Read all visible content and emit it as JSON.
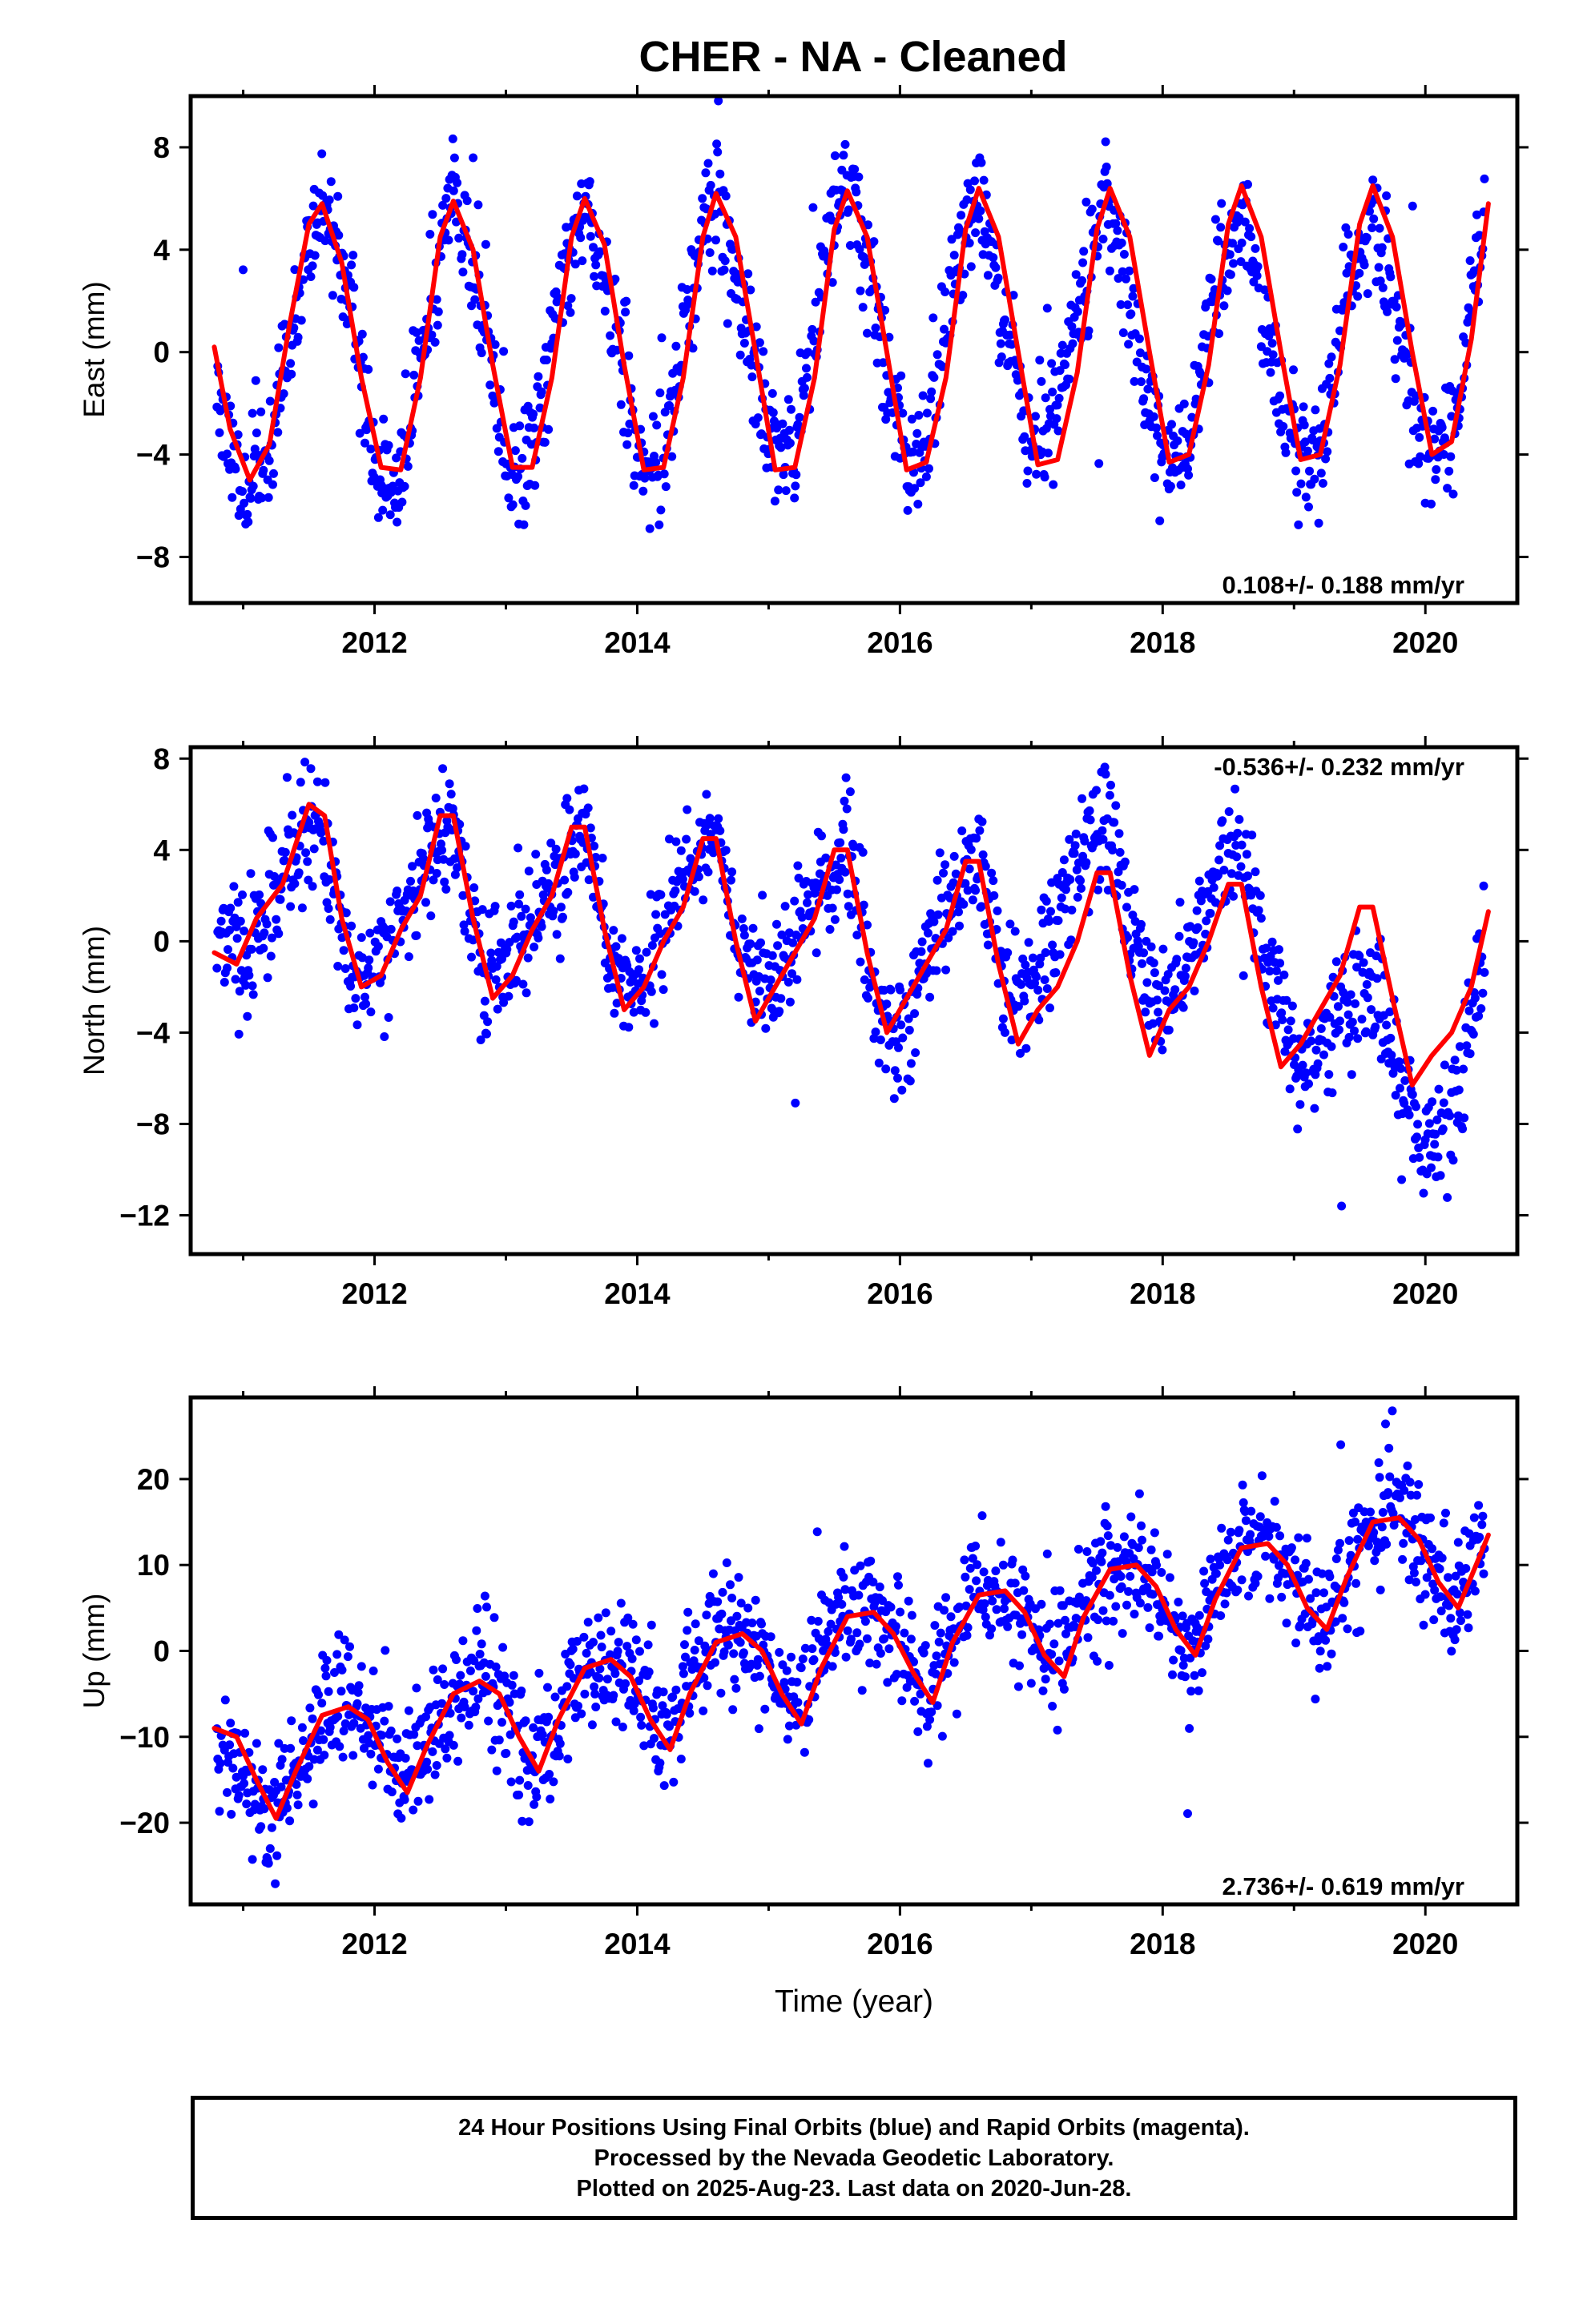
{
  "title": "CHER  - NA - Cleaned",
  "colors": {
    "points": "#0000ff",
    "fit": "#ff0000",
    "frame": "#000000"
  },
  "footer": {
    "line1": "24 Hour Positions Using Final Orbits (blue) and Rapid Orbits (magenta).",
    "line2": "Processed by the Nevada Geodetic Laboratory.",
    "line3": "Plotted on 2025-Aug-23. Last data on 2020-Jun-28."
  },
  "chart_data": [
    {
      "type": "scatter",
      "ylabel": "East (mm)",
      "xlabel": "",
      "xlim": [
        2010.6,
        2020.7
      ],
      "ylim": [
        -9.8,
        10.0
      ],
      "xticks": [
        2012,
        2014,
        2016,
        2018,
        2020
      ],
      "yticks": [
        -8,
        -4,
        0,
        4,
        8
      ],
      "rate_label": "0.108+/- 0.188 mm/yr",
      "rate_label_position": "bottom-right",
      "series": [
        {
          "kind": "points",
          "noise": 1.2,
          "seed": 11,
          "x": [
            2010.8,
            2011.0,
            2011.2,
            2011.4,
            2011.6,
            2011.8,
            2012.0,
            2012.2,
            2012.4,
            2012.6,
            2012.8,
            2013.0,
            2013.2,
            2013.4,
            2013.6,
            2013.8,
            2014.0,
            2014.2,
            2014.4,
            2014.6,
            2014.8,
            2015.0,
            2015.2,
            2015.4,
            2015.6,
            2015.8,
            2016.0,
            2016.2,
            2016.4,
            2016.6,
            2016.8,
            2017.0,
            2017.2,
            2017.4,
            2017.6,
            2017.8,
            2018.0,
            2018.2,
            2018.4,
            2018.6,
            2018.8,
            2019.0,
            2019.2,
            2019.4,
            2019.6,
            2019.8,
            2020.0,
            2020.2,
            2020.45
          ],
          "y": [
            -1.0,
            -5.5,
            -4.0,
            1.5,
            6.0,
            2.5,
            -4.5,
            -5.0,
            1.5,
            6.5,
            2.0,
            -4.0,
            -4.0,
            2.0,
            6.5,
            2.0,
            -3.8,
            -4.5,
            2.0,
            6.5,
            2.0,
            -3.5,
            -4.0,
            2.5,
            7.0,
            2.0,
            -4.0,
            -4.0,
            2.5,
            6.5,
            1.5,
            -4.0,
            -2.0,
            2.5,
            6.0,
            0.5,
            -4.5,
            -4.0,
            2.5,
            5.5,
            0.5,
            -4.0,
            -3.5,
            2.5,
            5.5,
            1.0,
            -4.0,
            -3.0,
            5.5
          ]
        },
        {
          "kind": "line",
          "x": [
            2010.78,
            2010.9,
            2011.05,
            2011.2,
            2011.35,
            2011.5,
            2011.6,
            2011.75,
            2011.9,
            2012.05,
            2012.2,
            2012.35,
            2012.5,
            2012.6,
            2012.75,
            2012.9,
            2013.05,
            2013.2,
            2013.35,
            2013.5,
            2013.6,
            2013.75,
            2013.9,
            2014.05,
            2014.2,
            2014.35,
            2014.5,
            2014.6,
            2014.75,
            2014.9,
            2015.05,
            2015.2,
            2015.35,
            2015.5,
            2015.6,
            2015.75,
            2015.9,
            2016.05,
            2016.2,
            2016.35,
            2016.5,
            2016.6,
            2016.75,
            2016.9,
            2017.05,
            2017.2,
            2017.35,
            2017.5,
            2017.6,
            2017.75,
            2017.9,
            2018.05,
            2018.2,
            2018.35,
            2018.5,
            2018.6,
            2018.75,
            2018.9,
            2019.05,
            2019.2,
            2019.35,
            2019.5,
            2019.6,
            2019.75,
            2019.9,
            2020.05,
            2020.2,
            2020.35,
            2020.48
          ],
          "y": [
            0.2,
            -3.0,
            -5.0,
            -3.6,
            1.0,
            5.0,
            5.8,
            3.5,
            -1.0,
            -4.5,
            -4.6,
            -1.0,
            4.5,
            5.9,
            4.0,
            -0.5,
            -4.5,
            -4.5,
            -1.0,
            4.5,
            6.0,
            4.2,
            -0.5,
            -4.6,
            -4.5,
            -1.0,
            4.5,
            6.2,
            4.5,
            0.0,
            -4.6,
            -4.5,
            -1.0,
            4.8,
            6.3,
            4.5,
            0.0,
            -4.6,
            -4.3,
            -1.0,
            4.8,
            6.4,
            4.5,
            0.0,
            -4.4,
            -4.2,
            -0.8,
            4.8,
            6.4,
            4.5,
            0.0,
            -4.3,
            -4.0,
            -0.5,
            5.0,
            6.5,
            4.5,
            0.0,
            -4.2,
            -4.0,
            -0.5,
            5.0,
            6.5,
            4.5,
            0.0,
            -4.0,
            -3.5,
            0.5,
            5.8
          ]
        }
      ]
    },
    {
      "type": "scatter",
      "ylabel": "North (mm)",
      "xlabel": "",
      "xlim": [
        2010.6,
        2020.7
      ],
      "ylim": [
        -13.7,
        8.5
      ],
      "xticks": [
        2012,
        2014,
        2016,
        2018,
        2020
      ],
      "yticks": [
        -12,
        -8,
        -4,
        0,
        4,
        8
      ],
      "rate_label": "-0.536+/- 0.232 mm/yr",
      "rate_label_position": "top-right",
      "series": [
        {
          "kind": "points",
          "noise": 1.3,
          "seed": 23,
          "x": [
            2010.8,
            2011.0,
            2011.2,
            2011.4,
            2011.6,
            2011.8,
            2012.0,
            2012.2,
            2012.4,
            2012.6,
            2012.8,
            2013.0,
            2013.2,
            2013.4,
            2013.6,
            2013.8,
            2014.0,
            2014.2,
            2014.4,
            2014.6,
            2014.8,
            2015.0,
            2015.2,
            2015.4,
            2015.6,
            2015.8,
            2016.0,
            2016.2,
            2016.4,
            2016.6,
            2016.8,
            2017.0,
            2017.2,
            2017.4,
            2017.6,
            2017.8,
            2018.0,
            2018.2,
            2018.4,
            2018.6,
            2018.8,
            2019.0,
            2019.2,
            2019.4,
            2019.6,
            2019.8,
            2020.0,
            2020.2,
            2020.45
          ],
          "y": [
            0.5,
            -1.0,
            1.5,
            4.0,
            5.5,
            -1.0,
            -2.0,
            1.0,
            3.5,
            5.0,
            -1.0,
            -1.5,
            1.0,
            3.0,
            5.0,
            -1.0,
            -2.5,
            0.5,
            3.0,
            5.0,
            -1.0,
            -2.0,
            0.5,
            3.0,
            4.0,
            -3.0,
            -4.5,
            -1.0,
            2.0,
            4.0,
            -2.0,
            -2.0,
            1.0,
            4.0,
            5.5,
            -1.0,
            -3.5,
            -1.0,
            2.5,
            5.0,
            -1.0,
            -6.0,
            -4.5,
            -3.0,
            -2.0,
            -5.0,
            -9.5,
            -7.5,
            -1.0
          ]
        },
        {
          "kind": "line",
          "x": [
            2010.78,
            2010.95,
            2011.1,
            2011.3,
            2011.5,
            2011.62,
            2011.75,
            2011.9,
            2012.05,
            2012.2,
            2012.35,
            2012.5,
            2012.6,
            2012.75,
            2012.9,
            2013.05,
            2013.2,
            2013.35,
            2013.5,
            2013.6,
            2013.75,
            2013.9,
            2014.05,
            2014.2,
            2014.35,
            2014.5,
            2014.6,
            2014.75,
            2014.9,
            2015.05,
            2015.2,
            2015.35,
            2015.5,
            2015.6,
            2015.75,
            2015.9,
            2016.05,
            2016.2,
            2016.35,
            2016.5,
            2016.6,
            2016.75,
            2016.9,
            2017.05,
            2017.2,
            2017.35,
            2017.5,
            2017.6,
            2017.75,
            2017.9,
            2018.05,
            2018.2,
            2018.35,
            2018.5,
            2018.6,
            2018.75,
            2018.9,
            2019.05,
            2019.2,
            2019.35,
            2019.5,
            2019.6,
            2019.75,
            2019.9,
            2020.05,
            2020.2,
            2020.35,
            2020.48
          ],
          "y": [
            -0.5,
            -1.0,
            1.0,
            2.5,
            6.0,
            5.5,
            1.0,
            -2.0,
            -1.5,
            0.5,
            2.0,
            5.5,
            5.5,
            1.0,
            -2.5,
            -1.5,
            0.5,
            2.0,
            5.0,
            5.0,
            0.5,
            -3.0,
            -2.0,
            0.0,
            1.5,
            4.5,
            4.5,
            0.0,
            -3.5,
            -2.0,
            -0.5,
            1.0,
            4.0,
            4.0,
            -0.5,
            -4.0,
            -2.5,
            -1.0,
            0.5,
            3.5,
            3.5,
            -1.0,
            -4.5,
            -3.0,
            -2.0,
            0.0,
            3.0,
            3.0,
            -1.5,
            -5.0,
            -3.0,
            -2.0,
            0.0,
            2.5,
            2.5,
            -2.0,
            -5.5,
            -4.5,
            -3.0,
            -1.5,
            1.5,
            1.5,
            -2.5,
            -6.3,
            -5.0,
            -4.0,
            -2.0,
            1.3
          ]
        }
      ]
    },
    {
      "type": "scatter",
      "ylabel": "Up (mm)",
      "xlabel": "Time (year)",
      "xlim": [
        2010.6,
        2020.7
      ],
      "ylim": [
        -29.5,
        29.5
      ],
      "xticks": [
        2012,
        2014,
        2016,
        2018,
        2020
      ],
      "yticks": [
        -20,
        -10,
        0,
        10,
        20
      ],
      "rate_label": "2.736+/- 0.619 mm/yr",
      "rate_label_position": "bottom-right",
      "series": [
        {
          "kind": "points",
          "noise": 3.6,
          "seed": 37,
          "x": [
            2010.8,
            2011.0,
            2011.2,
            2011.4,
            2011.6,
            2011.8,
            2012.0,
            2012.2,
            2012.4,
            2012.6,
            2012.8,
            2013.0,
            2013.2,
            2013.4,
            2013.6,
            2013.8,
            2014.0,
            2014.2,
            2014.4,
            2014.6,
            2014.8,
            2015.0,
            2015.2,
            2015.4,
            2015.6,
            2015.8,
            2016.0,
            2016.2,
            2016.4,
            2016.6,
            2016.8,
            2017.0,
            2017.2,
            2017.4,
            2017.6,
            2017.8,
            2018.0,
            2018.2,
            2018.4,
            2018.6,
            2018.8,
            2019.0,
            2019.2,
            2019.4,
            2019.6,
            2019.8,
            2020.0,
            2020.2,
            2020.45
          ],
          "y": [
            -11.0,
            -14.0,
            -19.0,
            -15.0,
            -8.0,
            -6.0,
            -10.0,
            -15.0,
            -10.0,
            -5.0,
            -3.0,
            -6.0,
            -13.0,
            -7.0,
            -2.0,
            -1.0,
            -4.0,
            -10.0,
            -3.0,
            2.0,
            2.0,
            -2.0,
            -7.0,
            0.0,
            5.0,
            5.0,
            1.0,
            -5.0,
            2.0,
            7.0,
            7.0,
            3.0,
            -2.0,
            5.0,
            10.0,
            10.0,
            7.0,
            0.0,
            6.0,
            13.0,
            13.0,
            9.0,
            2.0,
            8.0,
            15.0,
            16.0,
            11.0,
            5.0,
            13.0
          ]
        },
        {
          "kind": "line",
          "x": [
            2010.78,
            2010.95,
            2011.1,
            2011.25,
            2011.4,
            2011.6,
            2011.8,
            2011.95,
            2012.1,
            2012.25,
            2012.4,
            2012.6,
            2012.8,
            2012.95,
            2013.1,
            2013.25,
            2013.4,
            2013.6,
            2013.8,
            2013.95,
            2014.1,
            2014.25,
            2014.4,
            2014.6,
            2014.8,
            2014.95,
            2015.1,
            2015.25,
            2015.4,
            2015.6,
            2015.8,
            2015.95,
            2016.1,
            2016.25,
            2016.4,
            2016.6,
            2016.8,
            2016.95,
            2017.1,
            2017.25,
            2017.4,
            2017.6,
            2017.8,
            2017.95,
            2018.1,
            2018.25,
            2018.4,
            2018.6,
            2018.8,
            2018.95,
            2019.1,
            2019.25,
            2019.4,
            2019.6,
            2019.8,
            2019.95,
            2020.1,
            2020.25,
            2020.4,
            2020.48
          ],
          "y": [
            -9.0,
            -10.0,
            -15.0,
            -19.5,
            -14.0,
            -7.5,
            -6.5,
            -8.0,
            -13.0,
            -16.5,
            -11.0,
            -5.0,
            -3.5,
            -5.0,
            -10.0,
            -14.0,
            -8.0,
            -2.0,
            -1.0,
            -3.0,
            -8.0,
            -11.5,
            -5.0,
            1.0,
            2.0,
            0.0,
            -5.0,
            -8.5,
            -2.0,
            4.0,
            4.5,
            2.0,
            -2.5,
            -6.0,
            1.0,
            6.5,
            7.0,
            4.5,
            -0.5,
            -3.0,
            4.0,
            9.5,
            10.0,
            7.5,
            2.5,
            -0.5,
            6.0,
            12.0,
            12.5,
            10.0,
            5.0,
            2.5,
            8.5,
            15.0,
            15.5,
            13.0,
            8.0,
            5.0,
            10.5,
            13.5
          ]
        }
      ]
    }
  ]
}
